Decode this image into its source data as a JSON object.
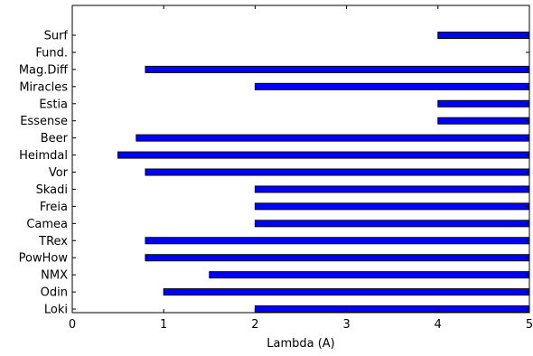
{
  "chart_data": {
    "type": "bar",
    "orientation": "horizontal",
    "title": "",
    "xlabel": "Lambda (A)",
    "ylabel": "",
    "xlim": [
      0,
      5
    ],
    "xticks": [
      0,
      1,
      2,
      3,
      4,
      5
    ],
    "grid": false,
    "legend": "none",
    "bar_color": "#0000ff",
    "categories": [
      "Surf",
      "Fund.",
      "Mag.Diff",
      "Miracles",
      "Estia",
      "Essense",
      "Beer",
      "Heimdal",
      "Vor",
      "Skadi",
      "Freia",
      "Camea",
      "TRex",
      "PowHow",
      "NMX",
      "Odin",
      "Loki"
    ],
    "series": [
      {
        "start": [
          4.0,
          null,
          0.8,
          2.0,
          4.0,
          4.0,
          0.7,
          0.5,
          0.8,
          2.0,
          2.0,
          2.0,
          0.8,
          0.8,
          1.5,
          1.0,
          2.0
        ],
        "end": [
          5.0,
          null,
          5.0,
          5.0,
          5.0,
          5.0,
          5.0,
          5.0,
          5.0,
          5.0,
          5.0,
          5.0,
          5.0,
          5.0,
          5.0,
          5.0,
          5.0
        ]
      }
    ]
  }
}
